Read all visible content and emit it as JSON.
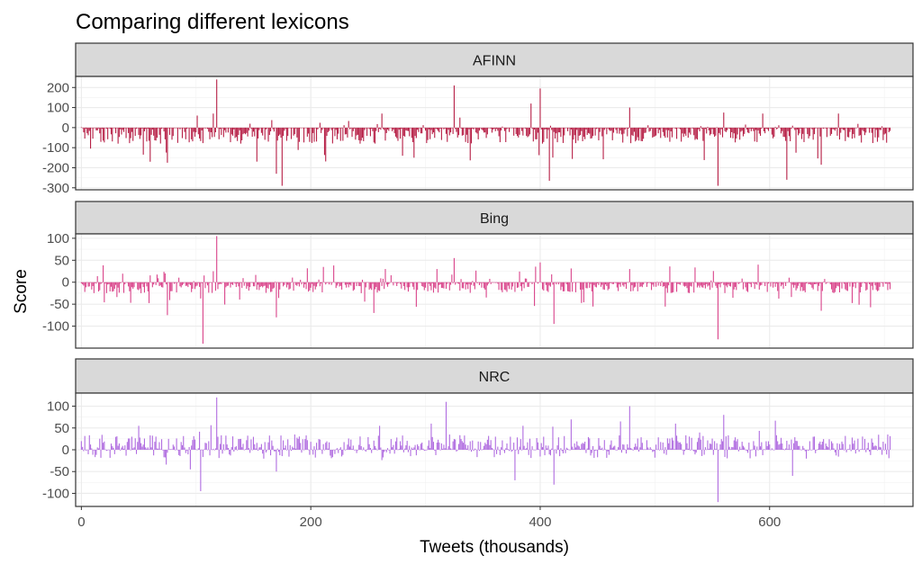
{
  "chart_data": {
    "type": "bar",
    "title": "Comparing different lexicons",
    "xlabel": "Tweets (thousands)",
    "ylabel": "Score",
    "xlim": [
      -5,
      725
    ],
    "xticks": [
      0,
      200,
      400,
      600
    ],
    "grid": true,
    "facets": [
      {
        "name": "AFINN",
        "color": "#b61e45",
        "ylim": [
          -310,
          255
        ],
        "yticks": [
          200,
          100,
          0,
          -100,
          -200,
          -300
        ],
        "n_points": 706,
        "typical_range": [
          -80,
          5
        ],
        "spikes": [
          {
            "x": 101,
            "y": 60
          },
          {
            "x": 118,
            "y": 240
          },
          {
            "x": 115,
            "y": 70
          },
          {
            "x": 170,
            "y": -230
          },
          {
            "x": 175,
            "y": -290
          },
          {
            "x": 262,
            "y": 70
          },
          {
            "x": 325,
            "y": 210
          },
          {
            "x": 330,
            "y": 50
          },
          {
            "x": 400,
            "y": 195
          },
          {
            "x": 392,
            "y": 120
          },
          {
            "x": 408,
            "y": -265
          },
          {
            "x": 478,
            "y": 100
          },
          {
            "x": 555,
            "y": -290
          },
          {
            "x": 560,
            "y": 75
          },
          {
            "x": 594,
            "y": 70
          },
          {
            "x": 615,
            "y": -260
          },
          {
            "x": 645,
            "y": -185
          },
          {
            "x": 660,
            "y": 70
          },
          {
            "x": 60,
            "y": -170
          },
          {
            "x": 75,
            "y": -175
          },
          {
            "x": 290,
            "y": -150
          }
        ]
      },
      {
        "name": "Bing",
        "color": "#d9438a",
        "ylim": [
          -150,
          110
        ],
        "yticks": [
          100,
          50,
          0,
          -50,
          -100
        ],
        "n_points": 706,
        "typical_range": [
          -25,
          0
        ],
        "spikes": [
          {
            "x": 106,
            "y": -140
          },
          {
            "x": 118,
            "y": 105
          },
          {
            "x": 115,
            "y": 25
          },
          {
            "x": 170,
            "y": -80
          },
          {
            "x": 255,
            "y": -70
          },
          {
            "x": 310,
            "y": 30
          },
          {
            "x": 325,
            "y": 55
          },
          {
            "x": 400,
            "y": 45
          },
          {
            "x": 412,
            "y": -95
          },
          {
            "x": 478,
            "y": 30
          },
          {
            "x": 555,
            "y": -130
          },
          {
            "x": 590,
            "y": 40
          },
          {
            "x": 645,
            "y": -65
          },
          {
            "x": 75,
            "y": -75
          }
        ]
      },
      {
        "name": "NRC",
        "color": "#b06ce0",
        "ylim": [
          -130,
          130
        ],
        "yticks": [
          100,
          50,
          0,
          -50,
          -100
        ],
        "n_points": 706,
        "typical_range": [
          -15,
          25
        ],
        "spikes": [
          {
            "x": 104,
            "y": -95
          },
          {
            "x": 118,
            "y": 120
          },
          {
            "x": 170,
            "y": -50
          },
          {
            "x": 260,
            "y": 55
          },
          {
            "x": 318,
            "y": 110
          },
          {
            "x": 305,
            "y": 60
          },
          {
            "x": 378,
            "y": -70
          },
          {
            "x": 412,
            "y": -80
          },
          {
            "x": 385,
            "y": 55
          },
          {
            "x": 478,
            "y": 100
          },
          {
            "x": 470,
            "y": 65
          },
          {
            "x": 518,
            "y": 60
          },
          {
            "x": 555,
            "y": -120
          },
          {
            "x": 560,
            "y": 80
          },
          {
            "x": 620,
            "y": -60
          },
          {
            "x": 95,
            "y": -45
          },
          {
            "x": 50,
            "y": 55
          }
        ]
      }
    ]
  }
}
